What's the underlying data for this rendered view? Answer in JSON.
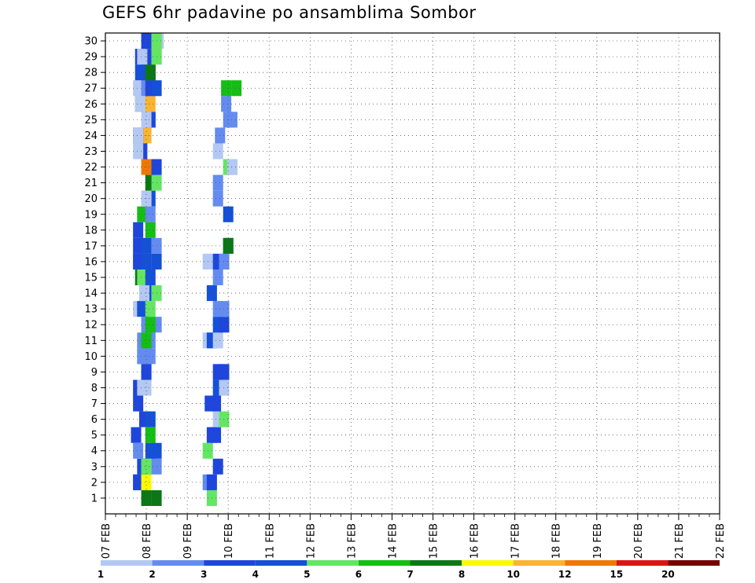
{
  "chart_data": {
    "type": "heatmap",
    "title": "GEFS 6hr padavine po ansamblima Sombor",
    "xlabel": "",
    "ylabel": "",
    "x_ticks": [
      "07 FEB",
      "08 FEB",
      "09 FEB",
      "10 FEB",
      "11 FEB",
      "12 FEB",
      "13 FEB",
      "14 FEB",
      "15 FEB",
      "16 FEB",
      "17 FEB",
      "18 FEB",
      "19 FEB",
      "20 FEB",
      "21 FEB",
      "22 FEB"
    ],
    "y_ticks": [
      "1",
      "2",
      "3",
      "4",
      "5",
      "6",
      "7",
      "8",
      "9",
      "10",
      "11",
      "12",
      "13",
      "14",
      "15",
      "16",
      "17",
      "18",
      "19",
      "20",
      "21",
      "22",
      "23",
      "24",
      "25",
      "26",
      "27",
      "28",
      "29",
      "30"
    ],
    "xlim_days": [
      0,
      15
    ],
    "ylim": [
      0,
      30
    ],
    "grid": true,
    "legend_position": "bottom",
    "legend": {
      "bounds": [
        "1",
        "2",
        "3",
        "4",
        "5",
        "6",
        "7",
        "8",
        "10",
        "12",
        "15",
        "20"
      ],
      "colors": [
        "#b4c8f4",
        "#648cf0",
        "#1e46dc",
        "#1450d8",
        "#64e664",
        "#14be14",
        "#0a7814",
        "#fafa00",
        "#fab432",
        "#f07800",
        "#dc1414",
        "#780000"
      ]
    },
    "cells": [
      [
        1.0,
        1,
        7
      ],
      [
        1.25,
        1,
        7
      ],
      [
        1.25,
        4,
        4
      ],
      [
        1.0,
        3,
        3
      ],
      [
        1.25,
        3,
        2
      ],
      [
        0.9,
        2,
        3
      ],
      [
        0.8,
        2,
        2
      ],
      [
        1.1,
        4,
        4
      ],
      [
        0.75,
        5,
        3
      ],
      [
        0.8,
        7,
        3
      ],
      [
        0.8,
        8,
        3
      ],
      [
        1.0,
        9,
        2
      ],
      [
        1.0,
        10,
        4
      ],
      [
        1.1,
        11,
        2
      ],
      [
        0.9,
        10,
        5
      ],
      [
        0.9,
        11,
        2
      ],
      [
        1.25,
        12,
        2
      ],
      [
        1.0,
        12,
        2
      ],
      [
        0.8,
        13,
        1
      ],
      [
        0.9,
        13,
        4
      ],
      [
        1.0,
        14,
        4
      ],
      [
        1.0,
        15,
        7
      ],
      [
        0.85,
        15,
        7
      ],
      [
        0.8,
        16,
        2
      ],
      [
        0.8,
        17,
        3
      ],
      [
        0.8,
        18,
        3
      ],
      [
        0.9,
        19,
        6
      ],
      [
        1.1,
        20,
        4
      ],
      [
        1.1,
        21,
        7
      ],
      [
        1.25,
        21,
        5
      ],
      [
        1.1,
        22,
        6
      ],
      [
        1.0,
        22,
        10
      ],
      [
        1.25,
        22,
        3
      ],
      [
        0.9,
        24,
        9
      ],
      [
        1.0,
        24,
        9
      ],
      [
        0.8,
        24,
        3
      ],
      [
        1.1,
        25,
        2
      ],
      [
        1.1,
        25,
        3
      ],
      [
        1.0,
        26,
        2
      ],
      [
        0.85,
        26,
        6
      ],
      [
        0.8,
        27,
        1
      ],
      [
        1.0,
        27,
        2
      ],
      [
        1.1,
        28,
        2
      ],
      [
        1.1,
        28,
        11
      ],
      [
        0.85,
        29,
        3
      ],
      [
        1.0,
        29,
        3
      ],
      [
        1.25,
        29,
        1
      ],
      [
        1.1,
        30,
        1
      ],
      [
        1.3,
        30,
        1
      ],
      [
        0.95,
        6,
        3
      ],
      [
        1.1,
        6,
        4
      ],
      [
        0.8,
        2,
        3
      ],
      [
        1.0,
        2,
        8
      ],
      [
        0.9,
        3,
        3
      ],
      [
        1.0,
        3,
        5
      ],
      [
        0.8,
        4,
        2
      ],
      [
        1.1,
        5,
        6
      ],
      [
        1.0,
        8,
        1
      ],
      [
        0.9,
        8,
        1
      ],
      [
        1.0,
        9,
        3
      ],
      [
        0.9,
        10,
        2
      ],
      [
        1.1,
        10,
        2
      ],
      [
        1.0,
        11,
        6
      ],
      [
        1.1,
        12,
        6
      ],
      [
        1.1,
        13,
        5
      ],
      [
        1.25,
        14,
        5
      ],
      [
        0.95,
        14,
        1
      ],
      [
        0.9,
        15,
        5
      ],
      [
        1.1,
        15,
        4
      ],
      [
        0.8,
        16,
        3
      ],
      [
        1.0,
        16,
        4
      ],
      [
        1.25,
        16,
        4
      ],
      [
        1.0,
        17,
        4
      ],
      [
        1.25,
        17,
        2
      ],
      [
        1.1,
        18,
        6
      ],
      [
        1.1,
        19,
        2
      ],
      [
        1.0,
        20,
        9
      ],
      [
        1.0,
        20,
        1
      ],
      [
        0.9,
        23,
        3
      ],
      [
        0.8,
        23,
        1
      ],
      [
        0.8,
        24,
        1
      ],
      [
        1.0,
        25,
        1
      ],
      [
        1.0,
        26,
        5
      ],
      [
        1.1,
        26,
        9
      ],
      [
        0.85,
        26,
        1
      ],
      [
        1.1,
        27,
        3
      ],
      [
        1.25,
        27,
        4
      ],
      [
        1.0,
        28,
        3
      ],
      [
        0.85,
        28,
        4
      ],
      [
        1.1,
        28,
        7
      ],
      [
        0.9,
        29,
        1
      ],
      [
        1.25,
        29,
        1
      ],
      [
        1.0,
        30,
        3
      ],
      [
        1.25,
        30,
        5
      ],
      [
        1.25,
        29,
        5
      ]
    ],
    "cells_day2": [
      [
        2.6,
        1,
        5
      ],
      [
        2.5,
        2,
        2
      ],
      [
        2.6,
        2,
        3
      ],
      [
        2.75,
        3,
        3
      ],
      [
        2.5,
        4,
        5
      ],
      [
        2.6,
        5,
        3
      ],
      [
        2.7,
        5,
        3
      ],
      [
        2.75,
        6,
        1
      ],
      [
        2.9,
        6,
        5
      ],
      [
        2.55,
        7,
        3
      ],
      [
        2.7,
        7,
        3
      ],
      [
        2.75,
        8,
        4
      ],
      [
        2.9,
        8,
        1
      ],
      [
        2.75,
        9,
        3
      ],
      [
        2.9,
        9,
        3
      ],
      [
        2.5,
        11,
        1
      ],
      [
        2.6,
        11,
        4
      ],
      [
        2.75,
        11,
        1
      ],
      [
        2.75,
        12,
        4
      ],
      [
        2.9,
        12,
        3
      ],
      [
        2.75,
        13,
        2
      ],
      [
        2.9,
        13,
        2
      ],
      [
        2.6,
        14,
        4
      ],
      [
        2.75,
        15,
        2
      ],
      [
        2.5,
        16,
        1
      ],
      [
        2.6,
        16,
        1
      ],
      [
        2.75,
        16,
        3
      ],
      [
        2.9,
        16,
        2
      ],
      [
        3.0,
        17,
        3
      ],
      [
        3.0,
        17,
        7
      ],
      [
        3.0,
        19,
        4
      ],
      [
        2.75,
        20,
        2
      ],
      [
        2.75,
        21,
        2
      ],
      [
        3.0,
        22,
        5
      ],
      [
        3.1,
        22,
        5
      ],
      [
        3.1,
        22,
        1
      ],
      [
        2.75,
        23,
        1
      ],
      [
        2.8,
        24,
        2
      ],
      [
        3.0,
        25,
        2
      ],
      [
        3.1,
        25,
        2
      ],
      [
        2.95,
        26,
        2
      ],
      [
        2.95,
        27,
        6
      ],
      [
        3.2,
        27,
        6
      ]
    ]
  }
}
